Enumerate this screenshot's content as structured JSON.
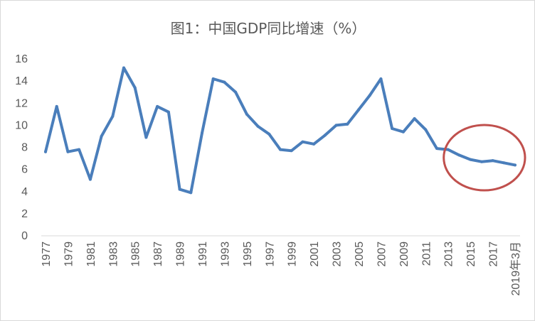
{
  "chart_data": {
    "type": "line",
    "title": "图1：中国GDP同比增速（%）",
    "xlabel": "",
    "ylabel": "",
    "ylim": [
      0,
      16
    ],
    "yticks": [
      0,
      2,
      4,
      6,
      8,
      10,
      12,
      14,
      16
    ],
    "grid": false,
    "legend": "none",
    "x": [
      "1977",
      "1978",
      "1979",
      "1980",
      "1981",
      "1982",
      "1983",
      "1984",
      "1985",
      "1986",
      "1987",
      "1988",
      "1989",
      "1990",
      "1991",
      "1992",
      "1993",
      "1994",
      "1995",
      "1996",
      "1997",
      "1998",
      "1999",
      "2000",
      "2001",
      "2002",
      "2003",
      "2004",
      "2005",
      "2006",
      "2007",
      "2008",
      "2009",
      "2010",
      "2011",
      "2012",
      "2013",
      "2014",
      "2015",
      "2016",
      "2017",
      "2018",
      "2019年3月"
    ],
    "xtick_labels": [
      "1977",
      "1979",
      "1981",
      "1983",
      "1985",
      "1987",
      "1989",
      "1991",
      "1993",
      "1995",
      "1997",
      "1999",
      "2001",
      "2003",
      "2005",
      "2007",
      "2009",
      "2011",
      "2013",
      "2015",
      "2017",
      "2019年3月"
    ],
    "series": [
      {
        "values": [
          7.6,
          11.7,
          7.6,
          7.8,
          5.1,
          9.0,
          10.8,
          15.2,
          13.4,
          8.9,
          11.7,
          11.2,
          4.2,
          3.9,
          9.3,
          14.2,
          13.9,
          13.0,
          11.0,
          9.9,
          9.2,
          7.8,
          7.7,
          8.5,
          8.3,
          9.1,
          10.0,
          10.1,
          11.4,
          12.7,
          14.2,
          9.7,
          9.4,
          10.6,
          9.6,
          7.9,
          7.8,
          7.3,
          6.9,
          6.7,
          6.8,
          6.6,
          6.4
        ],
        "color": "#4a7ebb"
      }
    ],
    "annotation": {
      "shape": "ellipse",
      "color": "#c0504d",
      "highlights": "2013–2019年3月"
    },
    "colors": {
      "line": "#4a7ebb",
      "ellipse": "#c0504d",
      "axis": "#d9d9d9",
      "text": "#595959"
    }
  }
}
